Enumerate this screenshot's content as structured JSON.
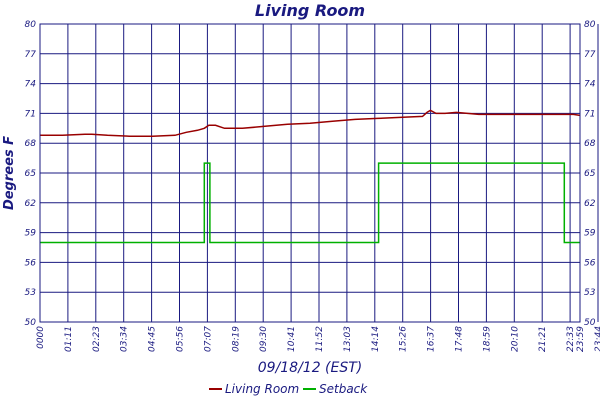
{
  "chart_data": {
    "type": "line",
    "title": "Living Room",
    "xlabel": "09/18/12 (EST)",
    "ylabel": "Degrees F",
    "ylim": [
      50,
      80
    ],
    "xlim": [
      0,
      24
    ],
    "yticks": [
      "50",
      "53",
      "56",
      "59",
      "62",
      "65",
      "68",
      "71",
      "74",
      "77",
      "80"
    ],
    "xticks": [
      "0000",
      "01:11",
      "02:23",
      "03:34",
      "04:45",
      "05:56",
      "07:07",
      "08:19",
      "09:30",
      "10:41",
      "11:52",
      "13:03",
      "14:14",
      "15:26",
      "16:37",
      "17:48",
      "18:59",
      "20:10",
      "21:21",
      "22:33",
      "23:44",
      "23:59"
    ],
    "grid": true,
    "legend_position": "bottom-center",
    "series": [
      {
        "name": "Living Room",
        "color": "#990000",
        "x": [
          0.0,
          1.0,
          2.0,
          2.3,
          3.0,
          4.0,
          5.0,
          6.0,
          6.5,
          7.0,
          7.3,
          7.5,
          7.8,
          8.2,
          8.5,
          9.0,
          10.0,
          11.0,
          12.0,
          13.0,
          14.0,
          15.0,
          16.0,
          17.0,
          17.2,
          17.35,
          17.6,
          18.0,
          18.5,
          19.0,
          19.5,
          20.0,
          21.0,
          22.0,
          23.0,
          23.7,
          24.0
        ],
        "values": [
          68.8,
          68.8,
          68.9,
          68.9,
          68.8,
          68.7,
          68.7,
          68.8,
          69.1,
          69.3,
          69.5,
          69.8,
          69.8,
          69.5,
          69.5,
          69.5,
          69.7,
          69.9,
          70.0,
          70.2,
          70.4,
          70.5,
          70.6,
          70.7,
          71.1,
          71.3,
          71.0,
          71.0,
          71.1,
          71.0,
          70.9,
          70.9,
          70.9,
          70.9,
          70.9,
          70.9,
          70.8
        ]
      },
      {
        "name": "Setback",
        "color": "#00b000",
        "x": [
          0.0,
          7.3,
          7.3,
          7.55,
          7.55,
          15.05,
          15.05,
          23.3,
          23.3,
          24.0
        ],
        "values": [
          58,
          58,
          66,
          66,
          58,
          58,
          66,
          66,
          58,
          58
        ]
      }
    ]
  }
}
